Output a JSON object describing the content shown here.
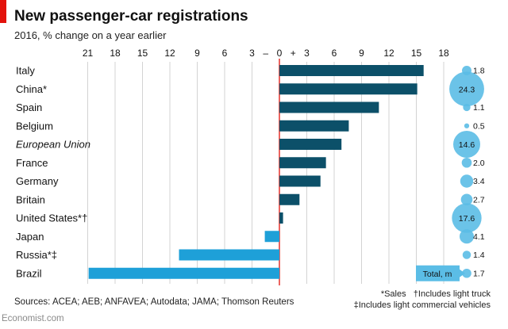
{
  "header": {
    "title": "New passenger-car registrations",
    "subtitle": "2016, % change on a year earlier"
  },
  "chart_data": {
    "type": "bar",
    "orientation": "horizontal",
    "xlim": [
      -21,
      18
    ],
    "x_ticks": [
      "21",
      "18",
      "15",
      "12",
      "9",
      "6",
      "3",
      "–",
      "0",
      "+",
      "3",
      "6",
      "9",
      "12",
      "15",
      "18"
    ],
    "categories": [
      "Italy",
      "China*",
      "Spain",
      "Belgium",
      "European Union",
      "France",
      "Germany",
      "Britain",
      "United States*†",
      "Japan",
      "Russia*‡",
      "Brazil"
    ],
    "italic_categories": [
      "European Union"
    ],
    "values": [
      15.8,
      15.1,
      10.9,
      7.6,
      6.8,
      5.1,
      4.5,
      2.2,
      0.4,
      -1.6,
      -11.0,
      -20.9
    ],
    "totals_title": "Total, m",
    "totals": [
      1.8,
      24.3,
      1.1,
      0.5,
      14.6,
      2.0,
      3.4,
      2.7,
      17.6,
      4.1,
      1.4,
      1.7
    ],
    "colors": {
      "positive": "#0c5069",
      "negative": "#1ea0d8",
      "bubble": "#5bbde6",
      "zero_line": "#e3120b",
      "grid": "#d3d3d3"
    }
  },
  "footer": {
    "sources": "Sources: ACEA; AEB; ANFAVEA; Autodata; JAMA; Thomson Reuters",
    "note_sales": "*Sales",
    "note_truck": "†Includes light truck",
    "note_commercial": "‡Includes light commercial vehicles",
    "brand": "Economist.com"
  }
}
